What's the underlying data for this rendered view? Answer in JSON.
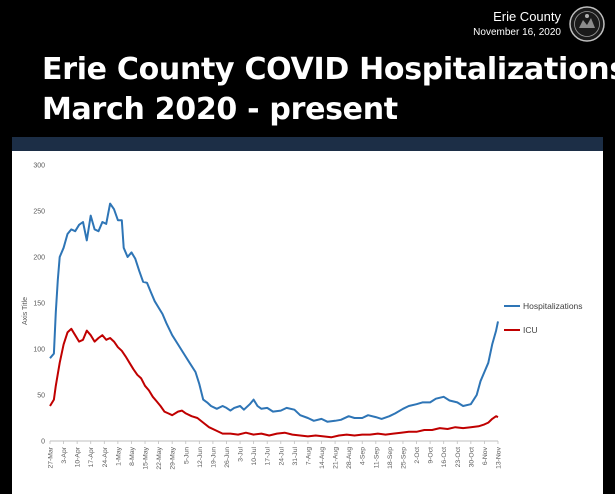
{
  "header": {
    "org_name": "Erie County",
    "date": "November 16, 2020",
    "title_line1": "Erie County COVID Hospitalizations",
    "title_line2": "March 2020 - present",
    "seal_icon": "county-seal-icon"
  },
  "chart_data": {
    "type": "line",
    "title": "",
    "xlabel": "",
    "ylabel": "Axis Title",
    "ylim": [
      0,
      300
    ],
    "yticks": [
      0,
      50,
      100,
      150,
      200,
      250,
      300
    ],
    "grid": false,
    "legend_position": "right",
    "x_tick_labels": [
      "27-Mar",
      "3-Apr",
      "10-Apr",
      "17-Apr",
      "24-Apr",
      "1-May",
      "8-May",
      "15-May",
      "22-May",
      "29-May",
      "5-Jun",
      "12-Jun",
      "19-Jun",
      "26-Jun",
      "3-Jul",
      "10-Jul",
      "17-Jul",
      "24-Jul",
      "31-Jul",
      "7-Aug",
      "14-Aug",
      "21-Aug",
      "28-Aug",
      "4-Sep",
      "11-Sep",
      "18-Sep",
      "25-Sep",
      "2-Oct",
      "9-Oct",
      "16-Oct",
      "23-Oct",
      "30-Oct",
      "6-Nov",
      "13-Nov"
    ],
    "series": [
      {
        "name": "Hospitalizations",
        "color": "#2e75b6",
        "points": [
          [
            "27-Mar",
            90
          ],
          [
            "29-Mar",
            95
          ],
          [
            "30-Mar",
            140
          ],
          [
            "31-Mar",
            175
          ],
          [
            "1-Apr",
            200
          ],
          [
            "3-Apr",
            210
          ],
          [
            "5-Apr",
            225
          ],
          [
            "7-Apr",
            230
          ],
          [
            "9-Apr",
            228
          ],
          [
            "11-Apr",
            235
          ],
          [
            "13-Apr",
            238
          ],
          [
            "15-Apr",
            218
          ],
          [
            "17-Apr",
            245
          ],
          [
            "19-Apr",
            230
          ],
          [
            "21-Apr",
            228
          ],
          [
            "23-Apr",
            238
          ],
          [
            "25-Apr",
            236
          ],
          [
            "27-Apr",
            258
          ],
          [
            "29-Apr",
            252
          ],
          [
            "1-May",
            240
          ],
          [
            "3-May",
            240
          ],
          [
            "4-May",
            210
          ],
          [
            "6-May",
            200
          ],
          [
            "8-May",
            205
          ],
          [
            "10-May",
            198
          ],
          [
            "12-May",
            185
          ],
          [
            "14-May",
            173
          ],
          [
            "16-May",
            172
          ],
          [
            "18-May",
            162
          ],
          [
            "20-May",
            152
          ],
          [
            "22-May",
            145
          ],
          [
            "24-May",
            138
          ],
          [
            "26-May",
            128
          ],
          [
            "29-May",
            115
          ],
          [
            "1-Jun",
            105
          ],
          [
            "4-Jun",
            95
          ],
          [
            "7-Jun",
            85
          ],
          [
            "10-Jun",
            75
          ],
          [
            "12-Jun",
            62
          ],
          [
            "14-Jun",
            45
          ],
          [
            "16-Jun",
            42
          ],
          [
            "18-Jun",
            38
          ],
          [
            "21-Jun",
            35
          ],
          [
            "24-Jun",
            38
          ],
          [
            "26-Jun",
            36
          ],
          [
            "28-Jun",
            33
          ],
          [
            "30-Jun",
            36
          ],
          [
            "3-Jul",
            38
          ],
          [
            "5-Jul",
            34
          ],
          [
            "8-Jul",
            40
          ],
          [
            "10-Jul",
            45
          ],
          [
            "12-Jul",
            38
          ],
          [
            "14-Jul",
            35
          ],
          [
            "17-Jul",
            36
          ],
          [
            "20-Jul",
            32
          ],
          [
            "24-Jul",
            33
          ],
          [
            "27-Jul",
            36
          ],
          [
            "31-Jul",
            34
          ],
          [
            "3-Aug",
            28
          ],
          [
            "7-Aug",
            25
          ],
          [
            "10-Aug",
            22
          ],
          [
            "14-Aug",
            24
          ],
          [
            "17-Aug",
            21
          ],
          [
            "21-Aug",
            22
          ],
          [
            "24-Aug",
            23
          ],
          [
            "28-Aug",
            27
          ],
          [
            "31-Aug",
            25
          ],
          [
            "4-Sep",
            25
          ],
          [
            "7-Sep",
            28
          ],
          [
            "11-Sep",
            26
          ],
          [
            "14-Sep",
            24
          ],
          [
            "18-Sep",
            27
          ],
          [
            "21-Sep",
            30
          ],
          [
            "25-Sep",
            35
          ],
          [
            "28-Sep",
            38
          ],
          [
            "2-Oct",
            40
          ],
          [
            "5-Oct",
            42
          ],
          [
            "9-Oct",
            42
          ],
          [
            "12-Oct",
            46
          ],
          [
            "16-Oct",
            48
          ],
          [
            "19-Oct",
            44
          ],
          [
            "23-Oct",
            42
          ],
          [
            "26-Oct",
            38
          ],
          [
            "30-Oct",
            40
          ],
          [
            "2-Nov",
            50
          ],
          [
            "4-Nov",
            65
          ],
          [
            "6-Nov",
            75
          ],
          [
            "8-Nov",
            85
          ],
          [
            "10-Nov",
            105
          ],
          [
            "12-Nov",
            120
          ],
          [
            "13-Nov",
            130
          ]
        ]
      },
      {
        "name": "ICU",
        "color": "#c00000",
        "points": [
          [
            "27-Mar",
            38
          ],
          [
            "29-Mar",
            45
          ],
          [
            "30-Mar",
            60
          ],
          [
            "1-Apr",
            85
          ],
          [
            "3-Apr",
            105
          ],
          [
            "5-Apr",
            118
          ],
          [
            "7-Apr",
            122
          ],
          [
            "9-Apr",
            115
          ],
          [
            "11-Apr",
            108
          ],
          [
            "13-Apr",
            110
          ],
          [
            "15-Apr",
            120
          ],
          [
            "17-Apr",
            115
          ],
          [
            "19-Apr",
            108
          ],
          [
            "21-Apr",
            112
          ],
          [
            "23-Apr",
            115
          ],
          [
            "25-Apr",
            110
          ],
          [
            "27-Apr",
            112
          ],
          [
            "29-Apr",
            108
          ],
          [
            "1-May",
            102
          ],
          [
            "3-May",
            98
          ],
          [
            "5-May",
            92
          ],
          [
            "7-May",
            85
          ],
          [
            "9-May",
            78
          ],
          [
            "11-May",
            72
          ],
          [
            "13-May",
            68
          ],
          [
            "15-May",
            60
          ],
          [
            "17-May",
            55
          ],
          [
            "19-May",
            48
          ],
          [
            "21-May",
            43
          ],
          [
            "23-May",
            38
          ],
          [
            "25-May",
            32
          ],
          [
            "27-May",
            30
          ],
          [
            "29-May",
            28
          ],
          [
            "1-Jun",
            32
          ],
          [
            "3-Jun",
            33
          ],
          [
            "5-Jun",
            30
          ],
          [
            "8-Jun",
            27
          ],
          [
            "11-Jun",
            25
          ],
          [
            "14-Jun",
            20
          ],
          [
            "17-Jun",
            15
          ],
          [
            "21-Jun",
            11
          ],
          [
            "24-Jun",
            8
          ],
          [
            "28-Jun",
            8
          ],
          [
            "2-Jul",
            7
          ],
          [
            "6-Jul",
            9
          ],
          [
            "10-Jul",
            7
          ],
          [
            "14-Jul",
            8
          ],
          [
            "18-Jul",
            6
          ],
          [
            "22-Jul",
            8
          ],
          [
            "26-Jul",
            9
          ],
          [
            "30-Jul",
            7
          ],
          [
            "3-Aug",
            6
          ],
          [
            "7-Aug",
            5
          ],
          [
            "11-Aug",
            6
          ],
          [
            "15-Aug",
            5
          ],
          [
            "19-Aug",
            4
          ],
          [
            "23-Aug",
            6
          ],
          [
            "27-Aug",
            7
          ],
          [
            "31-Aug",
            6
          ],
          [
            "4-Sep",
            7
          ],
          [
            "8-Sep",
            7
          ],
          [
            "12-Sep",
            8
          ],
          [
            "16-Sep",
            7
          ],
          [
            "20-Sep",
            8
          ],
          [
            "24-Sep",
            9
          ],
          [
            "28-Sep",
            10
          ],
          [
            "2-Oct",
            10
          ],
          [
            "6-Oct",
            12
          ],
          [
            "10-Oct",
            12
          ],
          [
            "14-Oct",
            14
          ],
          [
            "18-Oct",
            13
          ],
          [
            "22-Oct",
            15
          ],
          [
            "26-Oct",
            14
          ],
          [
            "30-Oct",
            15
          ],
          [
            "3-Nov",
            16
          ],
          [
            "6-Nov",
            18
          ],
          [
            "8-Nov",
            20
          ],
          [
            "10-Nov",
            24
          ],
          [
            "12-Nov",
            27
          ],
          [
            "13-Nov",
            26
          ]
        ]
      }
    ]
  }
}
